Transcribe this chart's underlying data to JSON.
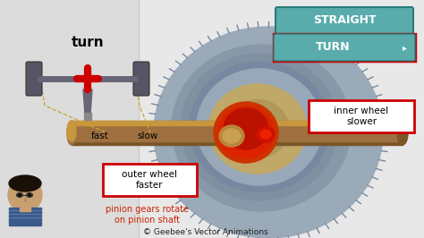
{
  "bg_color": "#e8e8e8",
  "title_text": "turn",
  "straight_btn_color": "#5aacac",
  "straight_btn_text": "STRAIGHT",
  "turn_btn_color": "#5aacac",
  "turn_btn_text": "TURN",
  "label1_text": "inner wheel\nslower",
  "label2_text": "outer wheel\nfaster",
  "label3_text": "pinion gears rotate\non pinion shaft",
  "fast_text": "fast",
  "slow_text": "slow",
  "copyright_text": "© Geebee's Vector Animations",
  "red_box_color": "#cc0000",
  "gear_color": "#9aaab8",
  "shaft_color": "#9e7040",
  "shaft_light": "#c8963c",
  "shaft_dark": "#7a5528",
  "red_center_color": "#cc2200",
  "annotation_color": "#cc2200",
  "text_color": "#000000",
  "dashed_color": "#c8a832",
  "left_divider_color": "#cccccc",
  "gear_inner_color": "#c0a868",
  "gear_mid_color": "#b09858",
  "wheel_color": "#555566",
  "axle_color": "#666677"
}
